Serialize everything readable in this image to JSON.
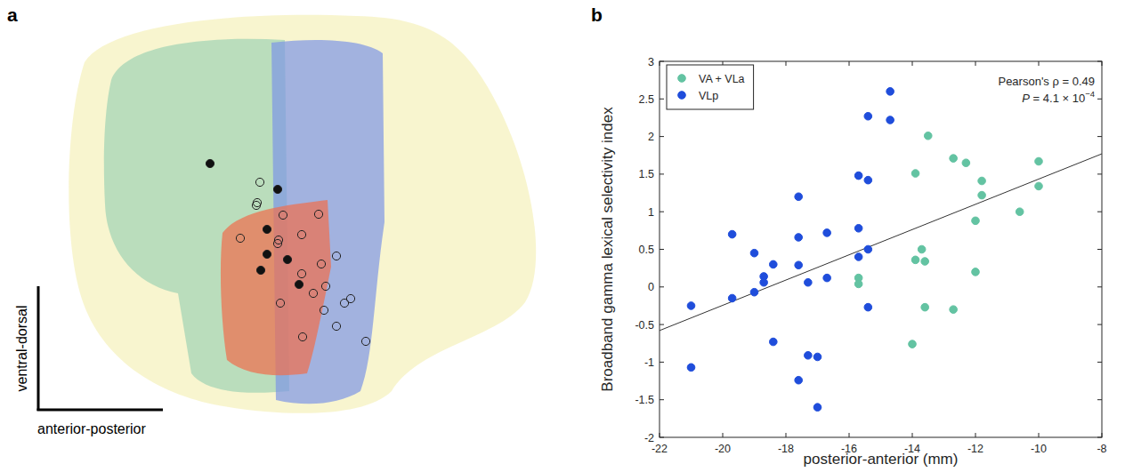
{
  "panel_a": {
    "label": "a",
    "y_axis_label": "ventral-dorsal",
    "x_axis_label": "anterior-posterior"
  },
  "panel_b": {
    "label": "b"
  },
  "chart_data": {
    "type": "scatter",
    "x_label": "posterior-anterior (mm)",
    "y_label": "Broadband gamma lexical selectivity index",
    "annotations": [
      {
        "text": "Pearson's ρ = 0.49"
      },
      {
        "text": "P = 4.1 × 10",
        "superscript": "−4"
      }
    ],
    "legend": "upper left",
    "marker": "circle",
    "xlim": [
      -22,
      -8
    ],
    "xticks": [
      -22,
      -20,
      -18,
      -16,
      -14,
      -12,
      -10,
      -8
    ],
    "ylim": [
      -2,
      3
    ],
    "yticks": [
      -2,
      -1.5,
      -1,
      -0.5,
      0,
      0.5,
      1,
      1.5,
      2,
      2.5,
      3
    ],
    "trend_line": {
      "x": [
        -22,
        -8
      ],
      "y": [
        -0.58,
        1.77
      ]
    },
    "series": [
      {
        "name": "VA + VLa",
        "color": "#63c3a2",
        "x": [
          -15.7,
          -15.7,
          -14.0,
          -13.9,
          -13.9,
          -13.7,
          -13.6,
          -13.6,
          -13.5,
          -12.7,
          -12.7,
          -12.3,
          -12.0,
          -12.0,
          -11.8,
          -11.8,
          -10.6,
          -10.0,
          -10.0
        ],
        "values": [
          0.12,
          0.04,
          -0.76,
          1.51,
          0.36,
          0.5,
          0.34,
          -0.27,
          2.01,
          1.71,
          -0.3,
          1.65,
          0.88,
          0.2,
          1.41,
          1.22,
          1.0,
          1.67,
          1.34
        ]
      },
      {
        "name": "VLp",
        "color": "#1f4ddb",
        "x": [
          -21.0,
          -21.0,
          -19.7,
          -19.7,
          -19.0,
          -19.0,
          -18.7,
          -18.7,
          -18.4,
          -18.4,
          -17.6,
          -17.6,
          -17.6,
          -17.6,
          -17.3,
          -17.3,
          -17.0,
          -17.0,
          -16.7,
          -16.7,
          -15.7,
          -15.7,
          -15.7,
          -15.4,
          -15.4,
          -15.4,
          -15.4,
          -14.7,
          -14.7
        ],
        "values": [
          -0.25,
          -1.07,
          0.7,
          -0.15,
          0.45,
          -0.07,
          0.14,
          0.06,
          0.3,
          -0.73,
          1.2,
          0.66,
          0.29,
          -1.24,
          0.06,
          -0.91,
          -0.93,
          -1.6,
          0.72,
          0.12,
          1.48,
          0.78,
          0.4,
          2.27,
          1.42,
          0.5,
          -0.27,
          2.6,
          2.22
        ]
      }
    ]
  }
}
